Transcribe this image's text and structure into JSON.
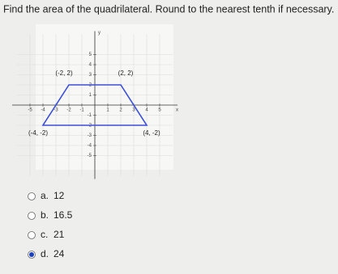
{
  "question": "Find the area of the quadrilateral. Round to the nearest tenth if necessary.",
  "graph": {
    "x_label": "x",
    "y_label": "y",
    "xlim": [
      -6,
      6
    ],
    "ylim": [
      -7,
      7
    ],
    "xticks": [
      -5,
      -4,
      -3,
      -2,
      -1,
      1,
      2,
      3,
      4,
      5
    ],
    "yticks": [
      -5,
      -4,
      -3,
      -2,
      -1,
      1,
      2,
      3,
      4,
      5
    ],
    "vertices": [
      {
        "x": -2,
        "y": 2,
        "label": "(-2, 2)"
      },
      {
        "x": 2,
        "y": 2,
        "label": "(2, 2)"
      },
      {
        "x": 4,
        "y": -2,
        "label": "(4, -2)"
      },
      {
        "x": -4,
        "y": -2,
        "label": "(-4, -2)"
      }
    ],
    "color": "#3b4fd8"
  },
  "options": [
    {
      "letter": "a.",
      "text": "12",
      "selected": false
    },
    {
      "letter": "b.",
      "text": "16.5",
      "selected": false
    },
    {
      "letter": "c.",
      "text": "21",
      "selected": false
    },
    {
      "letter": "d.",
      "text": "24",
      "selected": true
    }
  ]
}
